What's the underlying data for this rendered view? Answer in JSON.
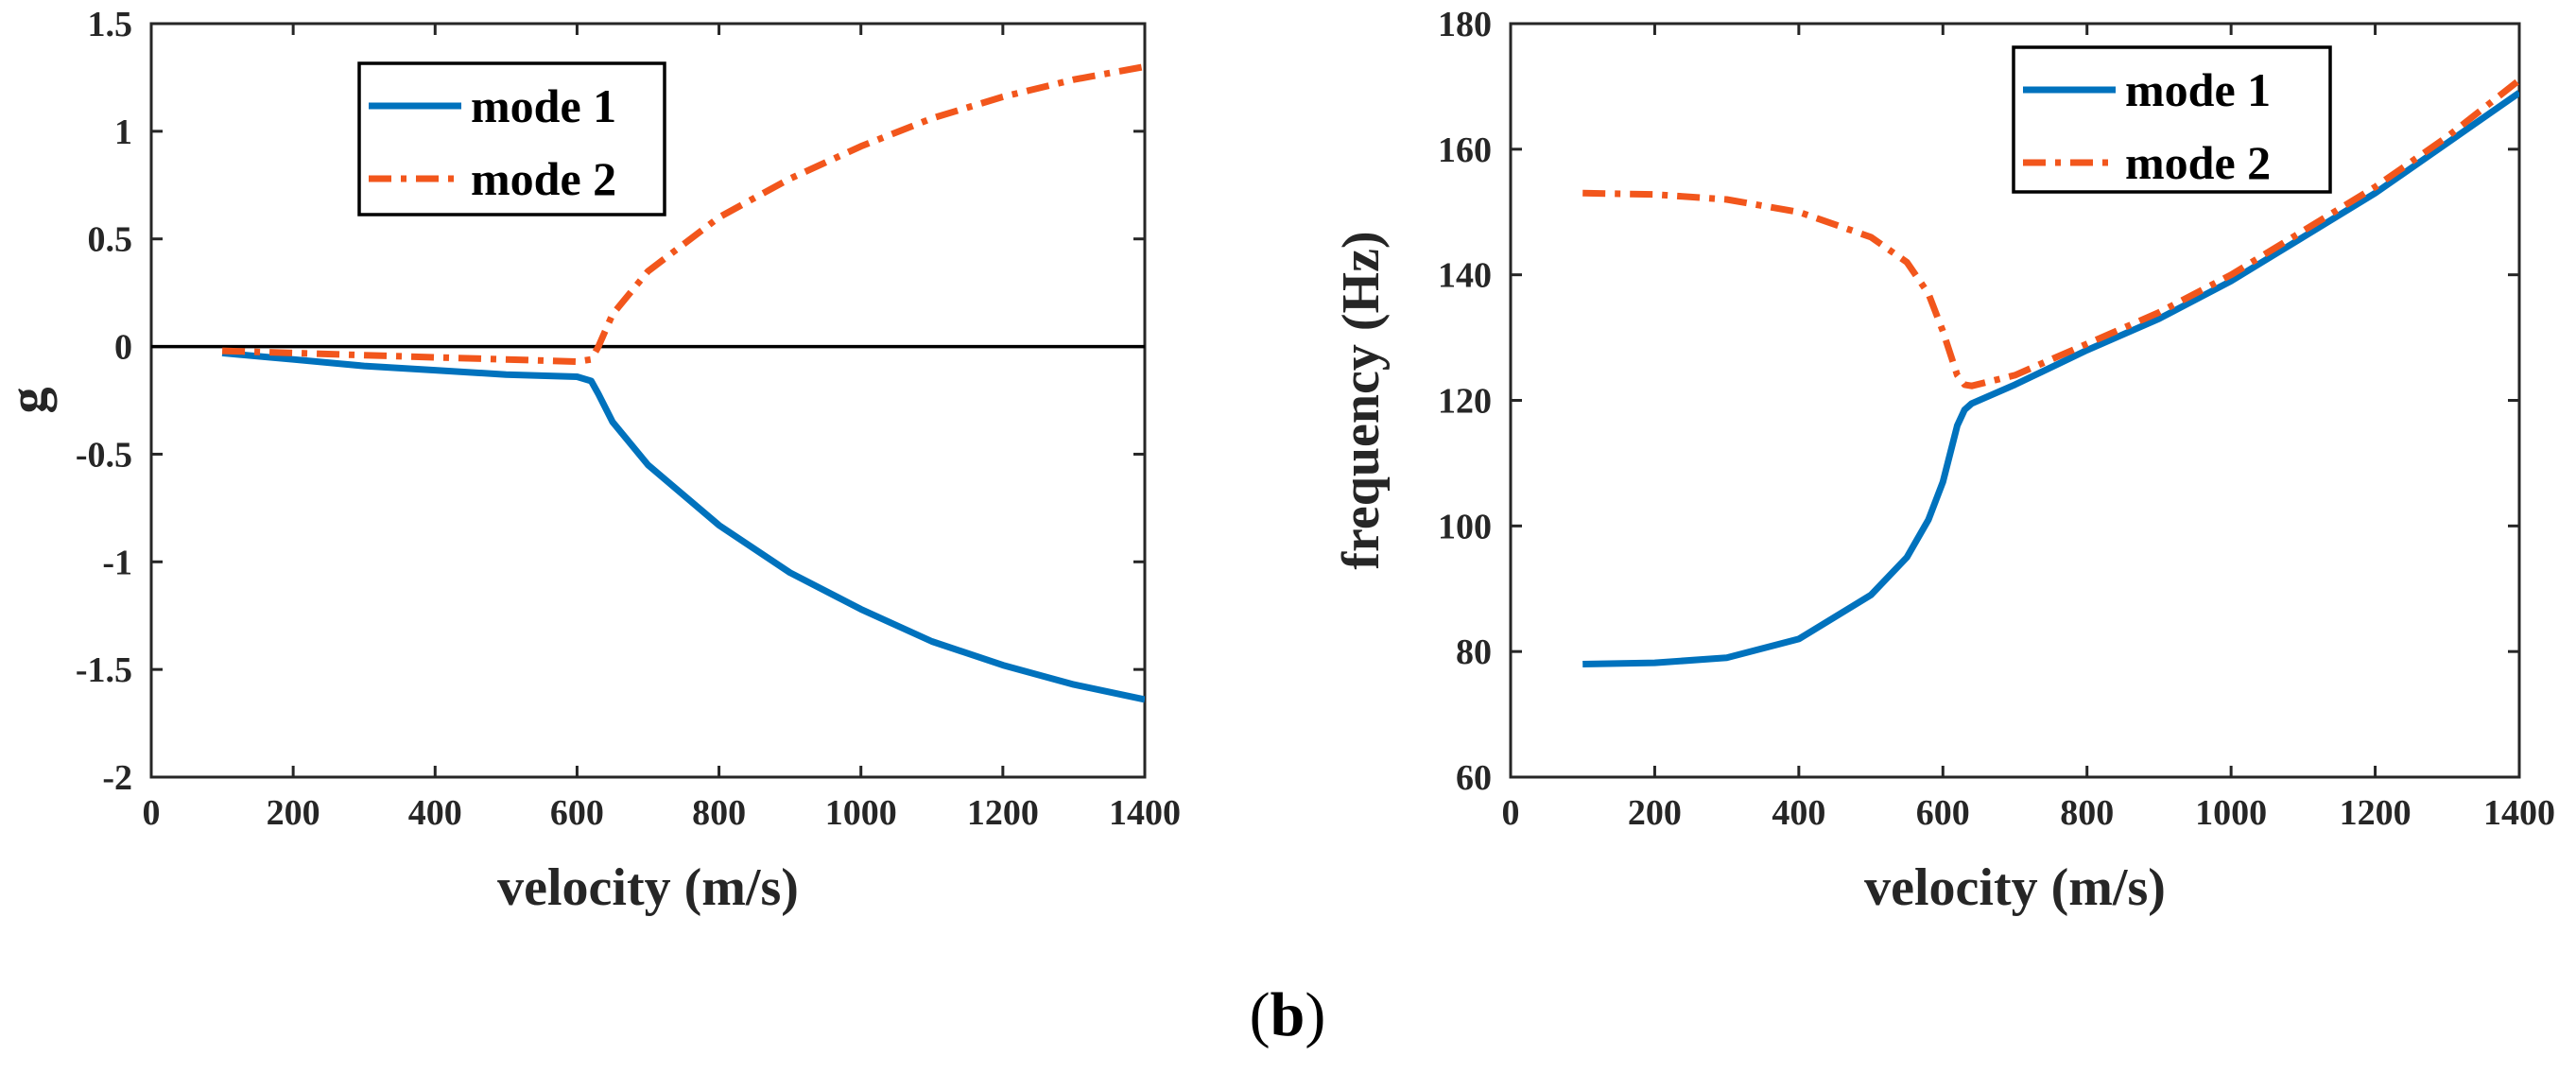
{
  "figure_caption": {
    "open": "(",
    "letter": "b",
    "close": ")"
  },
  "colors": {
    "mode1": "#0072BD",
    "mode2": "#F2561C",
    "axis": "#262626",
    "zero_line": "#000000"
  },
  "chart_data": [
    {
      "type": "line",
      "title": "",
      "xlabel": "velocity (m/s)",
      "ylabel": "g",
      "xlim": [
        0,
        1400
      ],
      "ylim": [
        -2,
        1.5
      ],
      "xticks": [
        0,
        200,
        400,
        600,
        800,
        1000,
        1200,
        1400
      ],
      "yticks": [
        -2,
        -1.5,
        -1,
        -0.5,
        0,
        0.5,
        1,
        1.5
      ],
      "xtick_labels": [
        "0",
        "200",
        "400",
        "600",
        "800",
        "1000",
        "1200",
        "1400"
      ],
      "ytick_labels": [
        "-2",
        "-1.5",
        "-1",
        "-0.5",
        "0",
        "0.5",
        "1",
        "1.5"
      ],
      "reference_line_y": 0,
      "legend": {
        "position": "top-left",
        "entries": [
          "mode 1",
          "mode 2"
        ]
      },
      "series": [
        {
          "name": "mode 1",
          "style": "solid",
          "x": [
            100,
            200,
            300,
            400,
            500,
            600,
            620,
            630,
            650,
            700,
            800,
            900,
            1000,
            1100,
            1200,
            1300,
            1400
          ],
          "y": [
            -0.03,
            -0.06,
            -0.09,
            -0.11,
            -0.13,
            -0.14,
            -0.16,
            -0.22,
            -0.35,
            -0.55,
            -0.83,
            -1.05,
            -1.22,
            -1.37,
            -1.48,
            -1.57,
            -1.64
          ]
        },
        {
          "name": "mode 2",
          "style": "dashdot",
          "x": [
            100,
            200,
            300,
            400,
            500,
            600,
            620,
            630,
            650,
            700,
            800,
            900,
            1000,
            1100,
            1200,
            1300,
            1400
          ],
          "y": [
            -0.02,
            -0.03,
            -0.04,
            -0.05,
            -0.06,
            -0.07,
            -0.06,
            0.0,
            0.15,
            0.35,
            0.6,
            0.78,
            0.93,
            1.06,
            1.16,
            1.24,
            1.3
          ]
        }
      ]
    },
    {
      "type": "line",
      "title": "",
      "xlabel": "velocity (m/s)",
      "ylabel": "frequency (Hz)",
      "xlim": [
        0,
        1400
      ],
      "ylim": [
        60,
        180
      ],
      "xticks": [
        0,
        200,
        400,
        600,
        800,
        1000,
        1200,
        1400
      ],
      "yticks": [
        60,
        80,
        100,
        120,
        140,
        160,
        180
      ],
      "xtick_labels": [
        "0",
        "200",
        "400",
        "600",
        "800",
        "1000",
        "1200",
        "1400"
      ],
      "ytick_labels": [
        "60",
        "80",
        "100",
        "120",
        "140",
        "160",
        "180"
      ],
      "legend": {
        "position": "top-right",
        "entries": [
          "mode 1",
          "mode 2"
        ]
      },
      "series": [
        {
          "name": "mode 1",
          "style": "solid",
          "x": [
            100,
            200,
            300,
            400,
            500,
            550,
            580,
            600,
            620,
            630,
            640,
            700,
            800,
            900,
            1000,
            1100,
            1200,
            1300,
            1400
          ],
          "y": [
            78,
            78.2,
            79,
            82,
            89,
            95,
            101,
            107,
            116,
            118.5,
            119.5,
            122.5,
            128,
            133,
            139,
            146,
            153,
            161,
            169
          ]
        },
        {
          "name": "mode 2",
          "style": "dashdot",
          "x": [
            100,
            200,
            300,
            400,
            500,
            550,
            580,
            600,
            620,
            630,
            640,
            700,
            800,
            900,
            1000,
            1100,
            1200,
            1300,
            1400
          ],
          "y": [
            153,
            152.8,
            152,
            150,
            146,
            142,
            137,
            131,
            124,
            122.5,
            122.3,
            124,
            129,
            134,
            140,
            147,
            154,
            162,
            171
          ]
        }
      ]
    }
  ]
}
